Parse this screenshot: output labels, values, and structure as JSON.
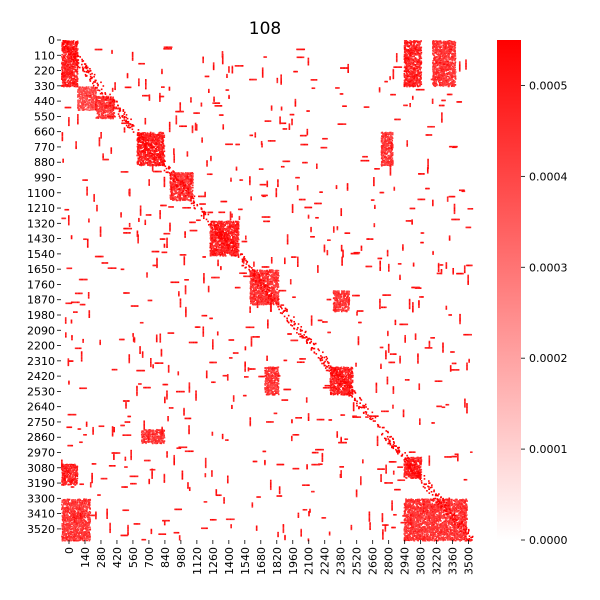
{
  "chart_data": {
    "type": "heatmap",
    "title": "108",
    "xlabel": "",
    "ylabel": "",
    "matrix_size": 3600,
    "x_tick_labels": [
      "0",
      "140",
      "280",
      "420",
      "560",
      "700",
      "840",
      "980",
      "1120",
      "1260",
      "1400",
      "1540",
      "1680",
      "1820",
      "1960",
      "2100",
      "2240",
      "2380",
      "2520",
      "2660",
      "2800",
      "2940",
      "3080",
      "3220",
      "3360",
      "3500"
    ],
    "y_tick_labels": [
      "0",
      "110",
      "220",
      "330",
      "440",
      "550",
      "660",
      "770",
      "880",
      "990",
      "1100",
      "1210",
      "1320",
      "1430",
      "1540",
      "1650",
      "1760",
      "1870",
      "1980",
      "2090",
      "2200",
      "2310",
      "2420",
      "2530",
      "2640",
      "2750",
      "2860",
      "2970",
      "3080",
      "3190",
      "3300",
      "3410",
      "3520"
    ],
    "colorbar": {
      "min": 0.0,
      "max": 0.00055,
      "tick_labels": [
        "0.0000",
        "0.0001",
        "0.0002",
        "0.0003",
        "0.0004",
        "0.0005"
      ],
      "tick_values": [
        0.0,
        0.0001,
        0.0002,
        0.0003,
        0.0004,
        0.0005
      ],
      "color_low": "#ffffff",
      "color_high": "#ff0000"
    },
    "grid": false,
    "legend": "colorbar-right",
    "dense_blocks": [
      {
        "row": [
          0,
          330
        ],
        "col": [
          0,
          140
        ],
        "value": 0.00055
      },
      {
        "row": [
          0,
          330
        ],
        "col": [
          3000,
          3150
        ],
        "value": 0.00055
      },
      {
        "row": [
          0,
          330
        ],
        "col": [
          3250,
          3450
        ],
        "value": 0.0005
      },
      {
        "row": [
          330,
          500
        ],
        "col": [
          140,
          300
        ],
        "value": 0.00045
      },
      {
        "row": [
          400,
          560
        ],
        "col": [
          300,
          460
        ],
        "value": 0.0005
      },
      {
        "row": [
          660,
          900
        ],
        "col": [
          660,
          900
        ],
        "value": 0.00055
      },
      {
        "row": [
          660,
          900
        ],
        "col": [
          2800,
          2900
        ],
        "value": 0.0005
      },
      {
        "row": [
          950,
          1150
        ],
        "col": [
          950,
          1150
        ],
        "value": 0.0005
      },
      {
        "row": [
          1300,
          1550
        ],
        "col": [
          1300,
          1550
        ],
        "value": 0.00055
      },
      {
        "row": [
          1650,
          1900
        ],
        "col": [
          1650,
          1900
        ],
        "value": 0.0005
      },
      {
        "row": [
          1800,
          1950
        ],
        "col": [
          2380,
          2520
        ],
        "value": 0.0005
      },
      {
        "row": [
          2350,
          2550
        ],
        "col": [
          2350,
          2550
        ],
        "value": 0.00055
      },
      {
        "row": [
          2350,
          2550
        ],
        "col": [
          1780,
          1900
        ],
        "value": 0.0005
      },
      {
        "row": [
          2800,
          2900
        ],
        "col": [
          700,
          900
        ],
        "value": 0.0005
      },
      {
        "row": [
          3000,
          3150
        ],
        "col": [
          3000,
          3150
        ],
        "value": 0.00055
      },
      {
        "row": [
          3050,
          3200
        ],
        "col": [
          0,
          140
        ],
        "value": 0.00055
      },
      {
        "row": [
          3300,
          3600
        ],
        "col": [
          0,
          250
        ],
        "value": 0.0005
      },
      {
        "row": [
          3300,
          3600
        ],
        "col": [
          3000,
          3550
        ],
        "value": 0.0005
      }
    ]
  }
}
